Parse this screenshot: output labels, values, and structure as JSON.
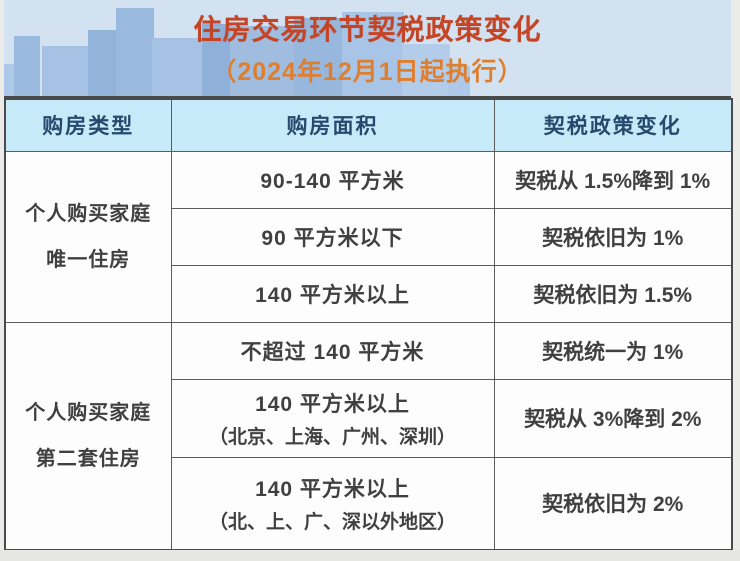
{
  "banner": {
    "title": "住房交易环节契税政策变化",
    "subtitle": "（2024年12月1日起执行）"
  },
  "colors": {
    "title_text": "#c44526",
    "subtitle_text": "#df7f2e",
    "banner_bg": "#d3e2f0",
    "building_blue": "#9ab9de",
    "header_bg": "#c6eaf7",
    "header_text": "#26496e",
    "cell_text": "#404040",
    "border": "#5c5c5c"
  },
  "table": {
    "headers": [
      "购房类型",
      "购房面积",
      "契税政策变化"
    ],
    "groups": [
      {
        "type_line1": "个人购买家庭",
        "type_line2": "唯一住房",
        "rows": [
          {
            "area": "90-140 平方米",
            "note": "",
            "policy": "契税从 1.5%降到 1%"
          },
          {
            "area": "90 平方米以下",
            "note": "",
            "policy": "契税依旧为 1%"
          },
          {
            "area": "140 平方米以上",
            "note": "",
            "policy": "契税依旧为 1.5%"
          }
        ]
      },
      {
        "type_line1": "个人购买家庭",
        "type_line2": "第二套住房",
        "rows": [
          {
            "area": "不超过 140 平方米",
            "note": "",
            "policy": "契税统一为 1%"
          },
          {
            "area": "140 平方米以上",
            "note": "（北京、上海、广州、深圳）",
            "policy": "契税从 3%降到 2%"
          },
          {
            "area": "140 平方米以上",
            "note": "（北、上、广、深以外地区）",
            "policy": "契税依旧为 2%"
          }
        ]
      }
    ]
  },
  "chart_data": {
    "type": "table",
    "title": "住房交易环节契税政策变化",
    "subtitle": "（2024年12月1日起执行）",
    "columns": [
      "购房类型",
      "购房面积",
      "契税政策变化"
    ],
    "rows": [
      [
        "个人购买家庭 唯一住房",
        "90-140 平方米",
        "契税从 1.5%降到 1%"
      ],
      [
        "个人购买家庭 唯一住房",
        "90 平方米以下",
        "契税依旧为 1%"
      ],
      [
        "个人购买家庭 唯一住房",
        "140 平方米以上",
        "契税依旧为 1.5%"
      ],
      [
        "个人购买家庭 第二套住房",
        "不超过 140 平方米",
        "契税统一为 1%"
      ],
      [
        "个人购买家庭 第二套住房",
        "140 平方米以上（北京、上海、广州、深圳）",
        "契税从 3%降到 2%"
      ],
      [
        "个人购买家庭 第二套住房",
        "140 平方米以上（北、上、广、深以外地区）",
        "契税依旧为 2%"
      ]
    ]
  }
}
